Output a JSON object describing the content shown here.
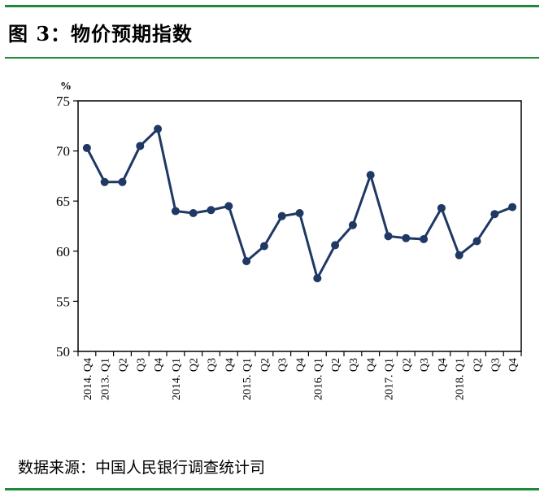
{
  "header": {
    "title": "图 3：物价预期指数"
  },
  "footer": {
    "source": "数据来源：中国人民银行调查统计司"
  },
  "colors": {
    "rule": "#1e8a3a",
    "line": "#1f3864",
    "frame": "#000000"
  },
  "chart_data": {
    "type": "line",
    "title": "",
    "xlabel": "",
    "ylabel": "%",
    "ylim": [
      50,
      75
    ],
    "yticks": [
      50,
      55,
      60,
      65,
      70,
      75
    ],
    "grid": false,
    "legend": "none",
    "categories": [
      "2014. Q4",
      "2013. Q1",
      "Q2",
      "Q3",
      "Q4",
      "2014. Q1",
      "Q2",
      "Q3",
      "Q4",
      "2015. Q1",
      "Q2",
      "Q3",
      "Q4",
      "2016. Q1",
      "Q2",
      "Q3",
      "Q4",
      "2017. Q1",
      "Q2",
      "Q3",
      "Q4",
      "2018. Q1",
      "Q2",
      "Q3",
      "Q4"
    ],
    "series": [
      {
        "values": [
          70.3,
          66.9,
          66.9,
          70.5,
          72.2,
          64.0,
          63.8,
          64.1,
          64.5,
          59.0,
          60.5,
          63.5,
          63.8,
          57.3,
          60.6,
          62.6,
          67.6,
          61.5,
          61.3,
          61.2,
          64.3,
          59.6,
          61.0,
          63.7,
          64.4
        ]
      }
    ]
  }
}
